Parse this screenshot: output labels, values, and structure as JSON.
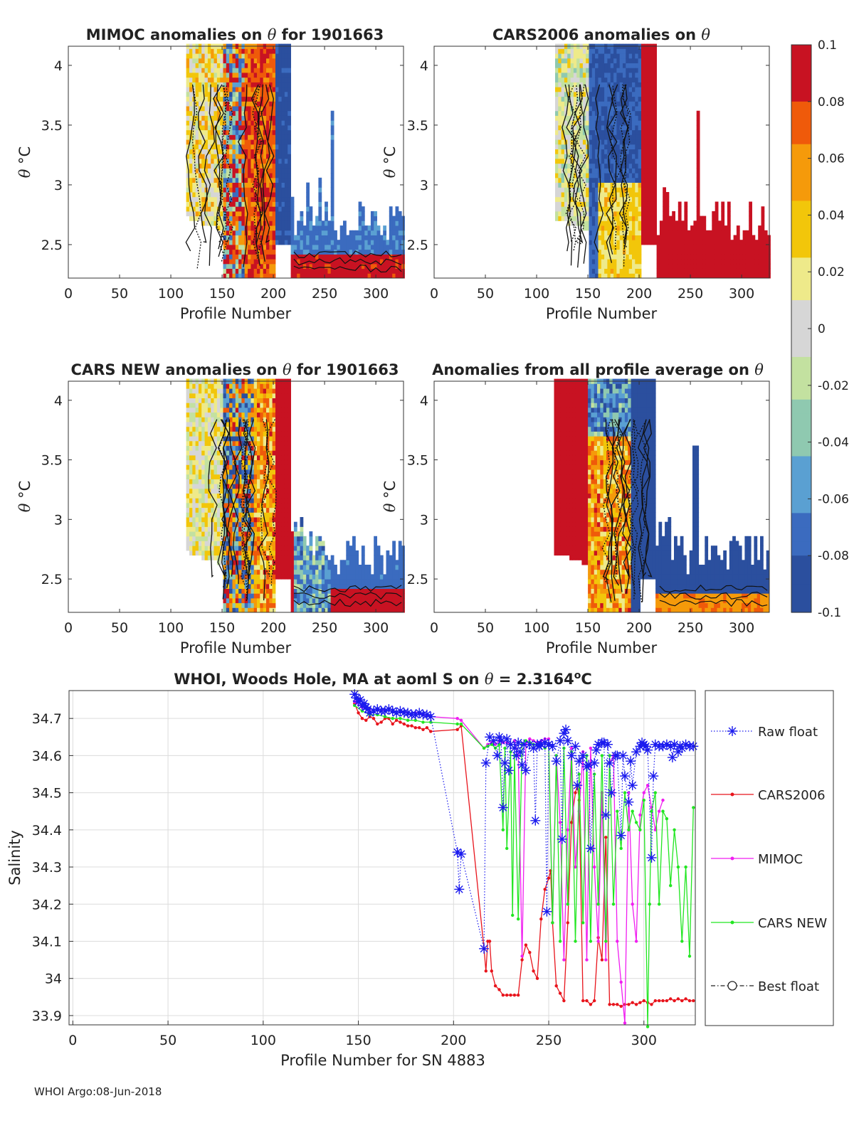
{
  "footer": "WHOI Argo:08-Jun-2018",
  "colors": {
    "raw_float": "#1a1aee",
    "cars2006": "#e8141c",
    "mimoc": "#f01ef0",
    "cars_new": "#22e622",
    "best_float": "#222222",
    "colormap": [
      "#2b4f9e",
      "#3b6bbf",
      "#5aa0d2",
      "#8fc9b0",
      "#c3e1a0",
      "#d6d6d6",
      "#eeea8a",
      "#f2c60a",
      "#f59a0a",
      "#ef5a0a",
      "#c81222"
    ]
  },
  "chart_data": [
    {
      "type": "heatmap",
      "title_prefix": "MIMOC anomalies on ",
      "title_symbol": "θ",
      "title_suffix": "  for 1901663",
      "xlabel": "Profile Number",
      "ylabel_symbol": "θ",
      "ylabel_unit": "°C",
      "xlim": [
        0,
        327
      ],
      "ylim": [
        2.22,
        4.16
      ],
      "xticks": [
        0,
        50,
        100,
        150,
        200,
        250,
        300
      ],
      "yticks": [
        2.5,
        3,
        3.5,
        4
      ],
      "ytick_labels": [
        "2.5",
        "3",
        "3.5",
        "4"
      ],
      "profile_range": [
        115,
        327
      ],
      "style": "mimoc"
    },
    {
      "type": "heatmap",
      "title_prefix": "CARS2006 anomalies on ",
      "title_symbol": "θ",
      "title_suffix": "",
      "xlabel": "Profile Number",
      "ylabel_symbol": "θ",
      "ylabel_unit": "°C",
      "xlim": [
        0,
        327
      ],
      "ylim": [
        2.22,
        4.16
      ],
      "xticks": [
        0,
        50,
        100,
        150,
        200,
        250,
        300
      ],
      "yticks": [
        2.5,
        3,
        3.5,
        4
      ],
      "ytick_labels": [
        "2.5",
        "3",
        "3.5",
        "4"
      ],
      "profile_range": [
        115,
        327
      ],
      "style": "cars2006"
    },
    {
      "type": "heatmap",
      "title_prefix": "CARS NEW anomalies on ",
      "title_symbol": "θ",
      "title_suffix": " for 1901663",
      "xlabel": "Profile Number",
      "ylabel_symbol": "θ",
      "ylabel_unit": "°C",
      "xlim": [
        0,
        327
      ],
      "ylim": [
        2.22,
        4.16
      ],
      "xticks": [
        0,
        50,
        100,
        150,
        200,
        250,
        300
      ],
      "yticks": [
        2.5,
        3,
        3.5,
        4
      ],
      "ytick_labels": [
        "2.5",
        "3",
        "3.5",
        "4"
      ],
      "profile_range": [
        115,
        327
      ],
      "style": "carsnew"
    },
    {
      "type": "heatmap",
      "title_prefix": "Anomalies from all profile average on ",
      "title_symbol": "θ",
      "title_suffix": "",
      "xlabel": "Profile Number",
      "ylabel_symbol": "θ",
      "ylabel_unit": "°C",
      "xlim": [
        0,
        327
      ],
      "ylim": [
        2.22,
        4.16
      ],
      "xticks": [
        0,
        50,
        100,
        150,
        200,
        250,
        300
      ],
      "yticks": [
        2.5,
        3,
        3.5,
        4
      ],
      "ytick_labels": [
        "2.5",
        "3",
        "3.5",
        "4"
      ],
      "profile_range": [
        115,
        327
      ],
      "style": "allavg"
    },
    {
      "type": "colorbar",
      "range": [
        -0.1,
        0.1
      ],
      "ticks": [
        -0.1,
        -0.08,
        -0.06,
        -0.04,
        -0.02,
        0,
        0.02,
        0.04,
        0.06,
        0.08,
        0.1
      ],
      "tick_labels": [
        "-0.1",
        "-0.08",
        "-0.06",
        "-0.04",
        "-0.02",
        "0",
        "0.02",
        "0.04",
        "0.06",
        "0.08",
        "0.1"
      ]
    },
    {
      "type": "line",
      "title_prefix": "WHOI, Woods Hole, MA at aoml S on ",
      "title_symbol": "θ",
      "title_value": " = 2.3164",
      "title_unit_sup": "o",
      "title_unit": "C",
      "xlabel": "Profile Number for SN 4883",
      "ylabel": "Salinity",
      "xlim": [
        -2,
        327
      ],
      "ylim": [
        33.875,
        34.775
      ],
      "xticks": [
        0,
        50,
        100,
        150,
        200,
        250,
        300
      ],
      "yticks": [
        33.9,
        34.0,
        34.1,
        34.2,
        34.3,
        34.4,
        34.5,
        34.6,
        34.7
      ],
      "ytick_labels": [
        "33.9",
        "34",
        "34.1",
        "34.2",
        "34.3",
        "34.4",
        "34.5",
        "34.6",
        "34.7"
      ],
      "grid": true,
      "legend_position": "outside-right",
      "series": [
        {
          "name": "Raw float",
          "style": "dotted-star",
          "x": [
            148,
            149,
            150,
            151,
            152,
            153,
            154,
            155,
            156,
            158,
            160,
            162,
            164,
            166,
            168,
            170,
            172,
            174,
            176,
            178,
            180,
            182,
            184,
            186,
            188,
            202,
            203,
            204,
            216,
            217,
            219,
            221,
            223,
            224,
            225,
            226,
            227,
            228,
            229,
            230,
            232,
            233,
            234,
            235,
            236,
            237,
            238,
            240,
            242,
            243,
            244,
            245,
            246,
            248,
            249,
            250,
            252,
            254,
            256,
            257,
            258,
            259,
            260,
            262,
            264,
            265,
            266,
            268,
            270,
            271,
            272,
            274,
            275,
            276,
            278,
            279,
            280,
            281,
            282,
            283,
            285,
            286,
            288,
            289,
            290,
            292,
            293,
            294,
            296,
            298,
            299,
            300,
            301,
            302,
            304,
            305,
            306,
            308,
            310,
            312,
            314,
            315,
            316,
            318,
            319,
            320,
            322,
            324,
            326
          ],
          "y": [
            34.765,
            34.755,
            34.745,
            34.75,
            34.735,
            34.74,
            34.73,
            34.725,
            34.715,
            34.72,
            34.725,
            34.72,
            34.72,
            34.725,
            34.72,
            34.715,
            34.72,
            34.715,
            34.715,
            34.71,
            34.71,
            34.715,
            34.71,
            34.71,
            34.705,
            34.34,
            34.24,
            34.335,
            34.08,
            34.58,
            34.65,
            34.64,
            34.6,
            34.65,
            34.64,
            34.46,
            34.58,
            34.645,
            34.56,
            34.63,
            34.62,
            34.6,
            34.635,
            34.61,
            34.575,
            34.63,
            34.56,
            34.63,
            34.62,
            34.425,
            34.63,
            34.625,
            34.63,
            34.635,
            34.18,
            34.63,
            34.625,
            34.585,
            34.64,
            34.375,
            34.66,
            34.67,
            34.64,
            34.6,
            34.625,
            34.52,
            34.585,
            34.6,
            34.57,
            34.575,
            34.35,
            34.58,
            34.615,
            34.63,
            34.635,
            34.635,
            34.44,
            34.63,
            34.58,
            34.5,
            34.6,
            34.6,
            34.385,
            34.6,
            34.545,
            34.475,
            34.585,
            34.52,
            34.61,
            34.625,
            34.635,
            34.63,
            34.625,
            34.615,
            34.325,
            34.545,
            34.63,
            34.625,
            34.625,
            34.63,
            34.625,
            34.595,
            34.63,
            34.61,
            34.625,
            34.62,
            34.63,
            34.625,
            34.625
          ]
        },
        {
          "name": "CARS2006",
          "style": "solid-dot",
          "x": [
            148,
            150,
            152,
            154,
            156,
            158,
            160,
            162,
            164,
            166,
            168,
            170,
            172,
            174,
            176,
            178,
            180,
            182,
            184,
            186,
            188,
            202,
            204,
            216,
            217,
            218,
            219,
            220,
            222,
            224,
            226,
            228,
            230,
            232,
            234,
            236,
            238,
            240,
            242,
            244,
            246,
            248,
            250,
            251,
            252,
            254,
            256,
            258,
            260,
            262,
            264,
            265,
            266,
            268,
            270,
            272,
            274,
            276,
            278,
            280,
            282,
            284,
            286,
            288,
            290,
            292,
            294,
            296,
            298,
            300,
            302,
            304,
            306,
            308,
            310,
            312,
            314,
            316,
            318,
            320,
            322,
            324,
            326
          ],
          "y": [
            34.74,
            34.715,
            34.7,
            34.695,
            34.705,
            34.7,
            34.685,
            34.69,
            34.7,
            34.7,
            34.685,
            34.695,
            34.69,
            34.685,
            34.68,
            34.68,
            34.675,
            34.675,
            34.67,
            34.675,
            34.665,
            34.67,
            34.68,
            34.08,
            34.02,
            34.1,
            34.1,
            34.02,
            33.98,
            33.97,
            33.955,
            33.955,
            33.955,
            33.955,
            33.955,
            34.05,
            34.09,
            34.07,
            34.02,
            34.0,
            34.16,
            34.24,
            34.27,
            34.29,
            34.15,
            33.98,
            33.96,
            33.94,
            34.15,
            34.42,
            34.5,
            34.52,
            34.48,
            33.94,
            33.94,
            33.93,
            33.94,
            34.11,
            34.05,
            34.38,
            33.93,
            33.93,
            33.93,
            33.925,
            33.93,
            33.93,
            33.935,
            33.93,
            33.935,
            33.94,
            33.935,
            33.93,
            33.94,
            33.94,
            33.94,
            33.94,
            33.945,
            33.94,
            33.945,
            33.94,
            33.945,
            33.94,
            33.94
          ]
        },
        {
          "name": "MIMOC",
          "style": "solid-dot",
          "x": [
            148,
            152,
            156,
            160,
            164,
            168,
            172,
            176,
            180,
            184,
            188,
            202,
            204,
            216,
            218,
            220,
            222,
            224,
            226,
            228,
            230,
            232,
            234,
            236,
            238,
            240,
            242,
            244,
            246,
            248,
            250,
            252,
            254,
            256,
            258,
            260,
            262,
            264,
            266,
            268,
            270,
            272,
            274,
            276,
            278,
            280,
            282,
            284,
            286,
            288,
            290,
            292,
            294,
            296,
            298,
            300,
            302,
            304,
            306,
            308,
            310
          ],
          "y": [
            34.745,
            34.73,
            34.725,
            34.725,
            34.72,
            34.72,
            34.72,
            34.715,
            34.715,
            34.71,
            34.705,
            34.7,
            34.695,
            34.62,
            34.63,
            34.635,
            34.63,
            34.64,
            34.635,
            34.635,
            34.63,
            34.64,
            34.6,
            34.06,
            34.63,
            34.645,
            34.64,
            34.635,
            34.64,
            34.645,
            34.645,
            34.15,
            34.6,
            34.42,
            34.05,
            34.4,
            34.62,
            34.3,
            34.45,
            34.61,
            34.05,
            34.62,
            34.3,
            34.1,
            34.5,
            34.05,
            34.58,
            34.6,
            34.1,
            33.99,
            33.88,
            34.5,
            34.2,
            34.1,
            34.44,
            34.5,
            34.52,
            34.46,
            34.4,
            34.45,
            34.48
          ]
        },
        {
          "name": "CARS NEW",
          "style": "solid-dot",
          "x": [
            148,
            152,
            156,
            160,
            164,
            168,
            172,
            176,
            180,
            184,
            188,
            202,
            204,
            216,
            218,
            220,
            222,
            224,
            226,
            227,
            228,
            230,
            231,
            232,
            234,
            236,
            238,
            240,
            242,
            244,
            246,
            248,
            250,
            252,
            254,
            256,
            258,
            260,
            262,
            264,
            266,
            268,
            270,
            272,
            274,
            276,
            278,
            280,
            282,
            284,
            286,
            288,
            290,
            292,
            294,
            296,
            298,
            300,
            302,
            303,
            304,
            306,
            308,
            310,
            312,
            314,
            316,
            318,
            320,
            322,
            324,
            326
          ],
          "y": [
            34.735,
            34.72,
            34.71,
            34.71,
            34.705,
            34.7,
            34.7,
            34.695,
            34.695,
            34.69,
            34.69,
            34.685,
            34.685,
            34.62,
            34.625,
            34.63,
            34.62,
            34.63,
            34.4,
            34.62,
            34.35,
            34.61,
            34.17,
            34.6,
            34.16,
            34.63,
            34.64,
            34.635,
            34.63,
            34.63,
            34.63,
            34.62,
            34.63,
            34.15,
            34.6,
            34.1,
            34.62,
            34.2,
            34.61,
            34.1,
            34.55,
            34.15,
            34.6,
            34.1,
            34.55,
            34.2,
            34.6,
            34.1,
            34.6,
            34.2,
            34.45,
            34.35,
            34.5,
            34.4,
            34.45,
            34.42,
            34.4,
            34.48,
            33.87,
            34.2,
            34.45,
            34.5,
            34.2,
            34.45,
            34.43,
            34.25,
            34.4,
            34.3,
            34.1,
            34.3,
            34.06,
            34.46
          ]
        },
        {
          "name": "Best float",
          "style": "dashdot-circle",
          "x": [],
          "y": []
        }
      ]
    }
  ]
}
